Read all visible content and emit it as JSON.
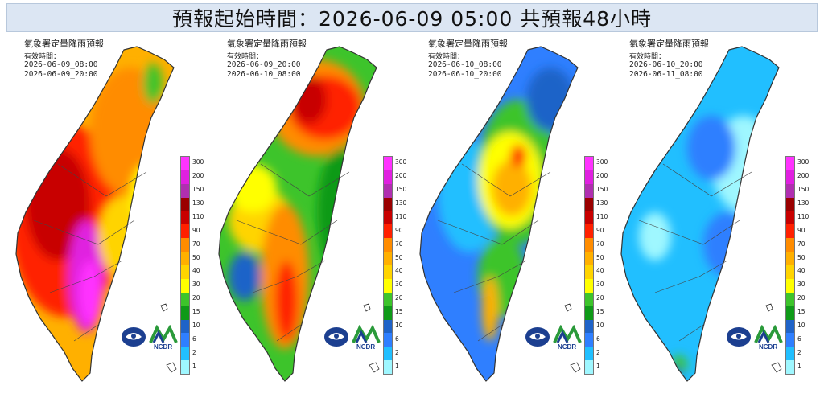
{
  "header": {
    "title": "預報起始時間：2026-06-09 05:00  共預報48小時"
  },
  "panels": [
    {
      "title": "氣象署定量降雨預報",
      "valid_label": "有效時間：",
      "start": "2026-06-09_08:00",
      "end": "2026-06-09_20:00",
      "scheme": "heavy"
    },
    {
      "title": "氣象署定量降雨預報",
      "valid_label": "有效時間：",
      "start": "2026-06-09_20:00",
      "end": "2026-06-10_08:00",
      "scheme": "moderate"
    },
    {
      "title": "氣象署定量降雨預報",
      "valid_label": "有效時間：",
      "start": "2026-06-10_08:00",
      "end": "2026-06-10_20:00",
      "scheme": "light"
    },
    {
      "title": "氣象署定量降雨預報",
      "valid_label": "有效時間：",
      "start": "2026-06-10_20:00",
      "end": "2026-06-11_08:00",
      "scheme": "verylight"
    }
  ],
  "legend": {
    "unit_levels": [
      "300",
      "200",
      "150",
      "130",
      "110",
      "90",
      "70",
      "50",
      "40",
      "30",
      "20",
      "15",
      "10",
      "6",
      "2",
      "1"
    ],
    "colors": [
      "#ff33ff",
      "#e020e0",
      "#b02fb0",
      "#9a0000",
      "#c80000",
      "#ff2000",
      "#ff8c00",
      "#ffb000",
      "#ffd400",
      "#ffff00",
      "#3dc42b",
      "#0f9a18",
      "#1f63c8",
      "#2f7fff",
      "#21bfff",
      "#9ff7ff"
    ]
  },
  "logos": {
    "ncdr_text": "NCDR"
  }
}
